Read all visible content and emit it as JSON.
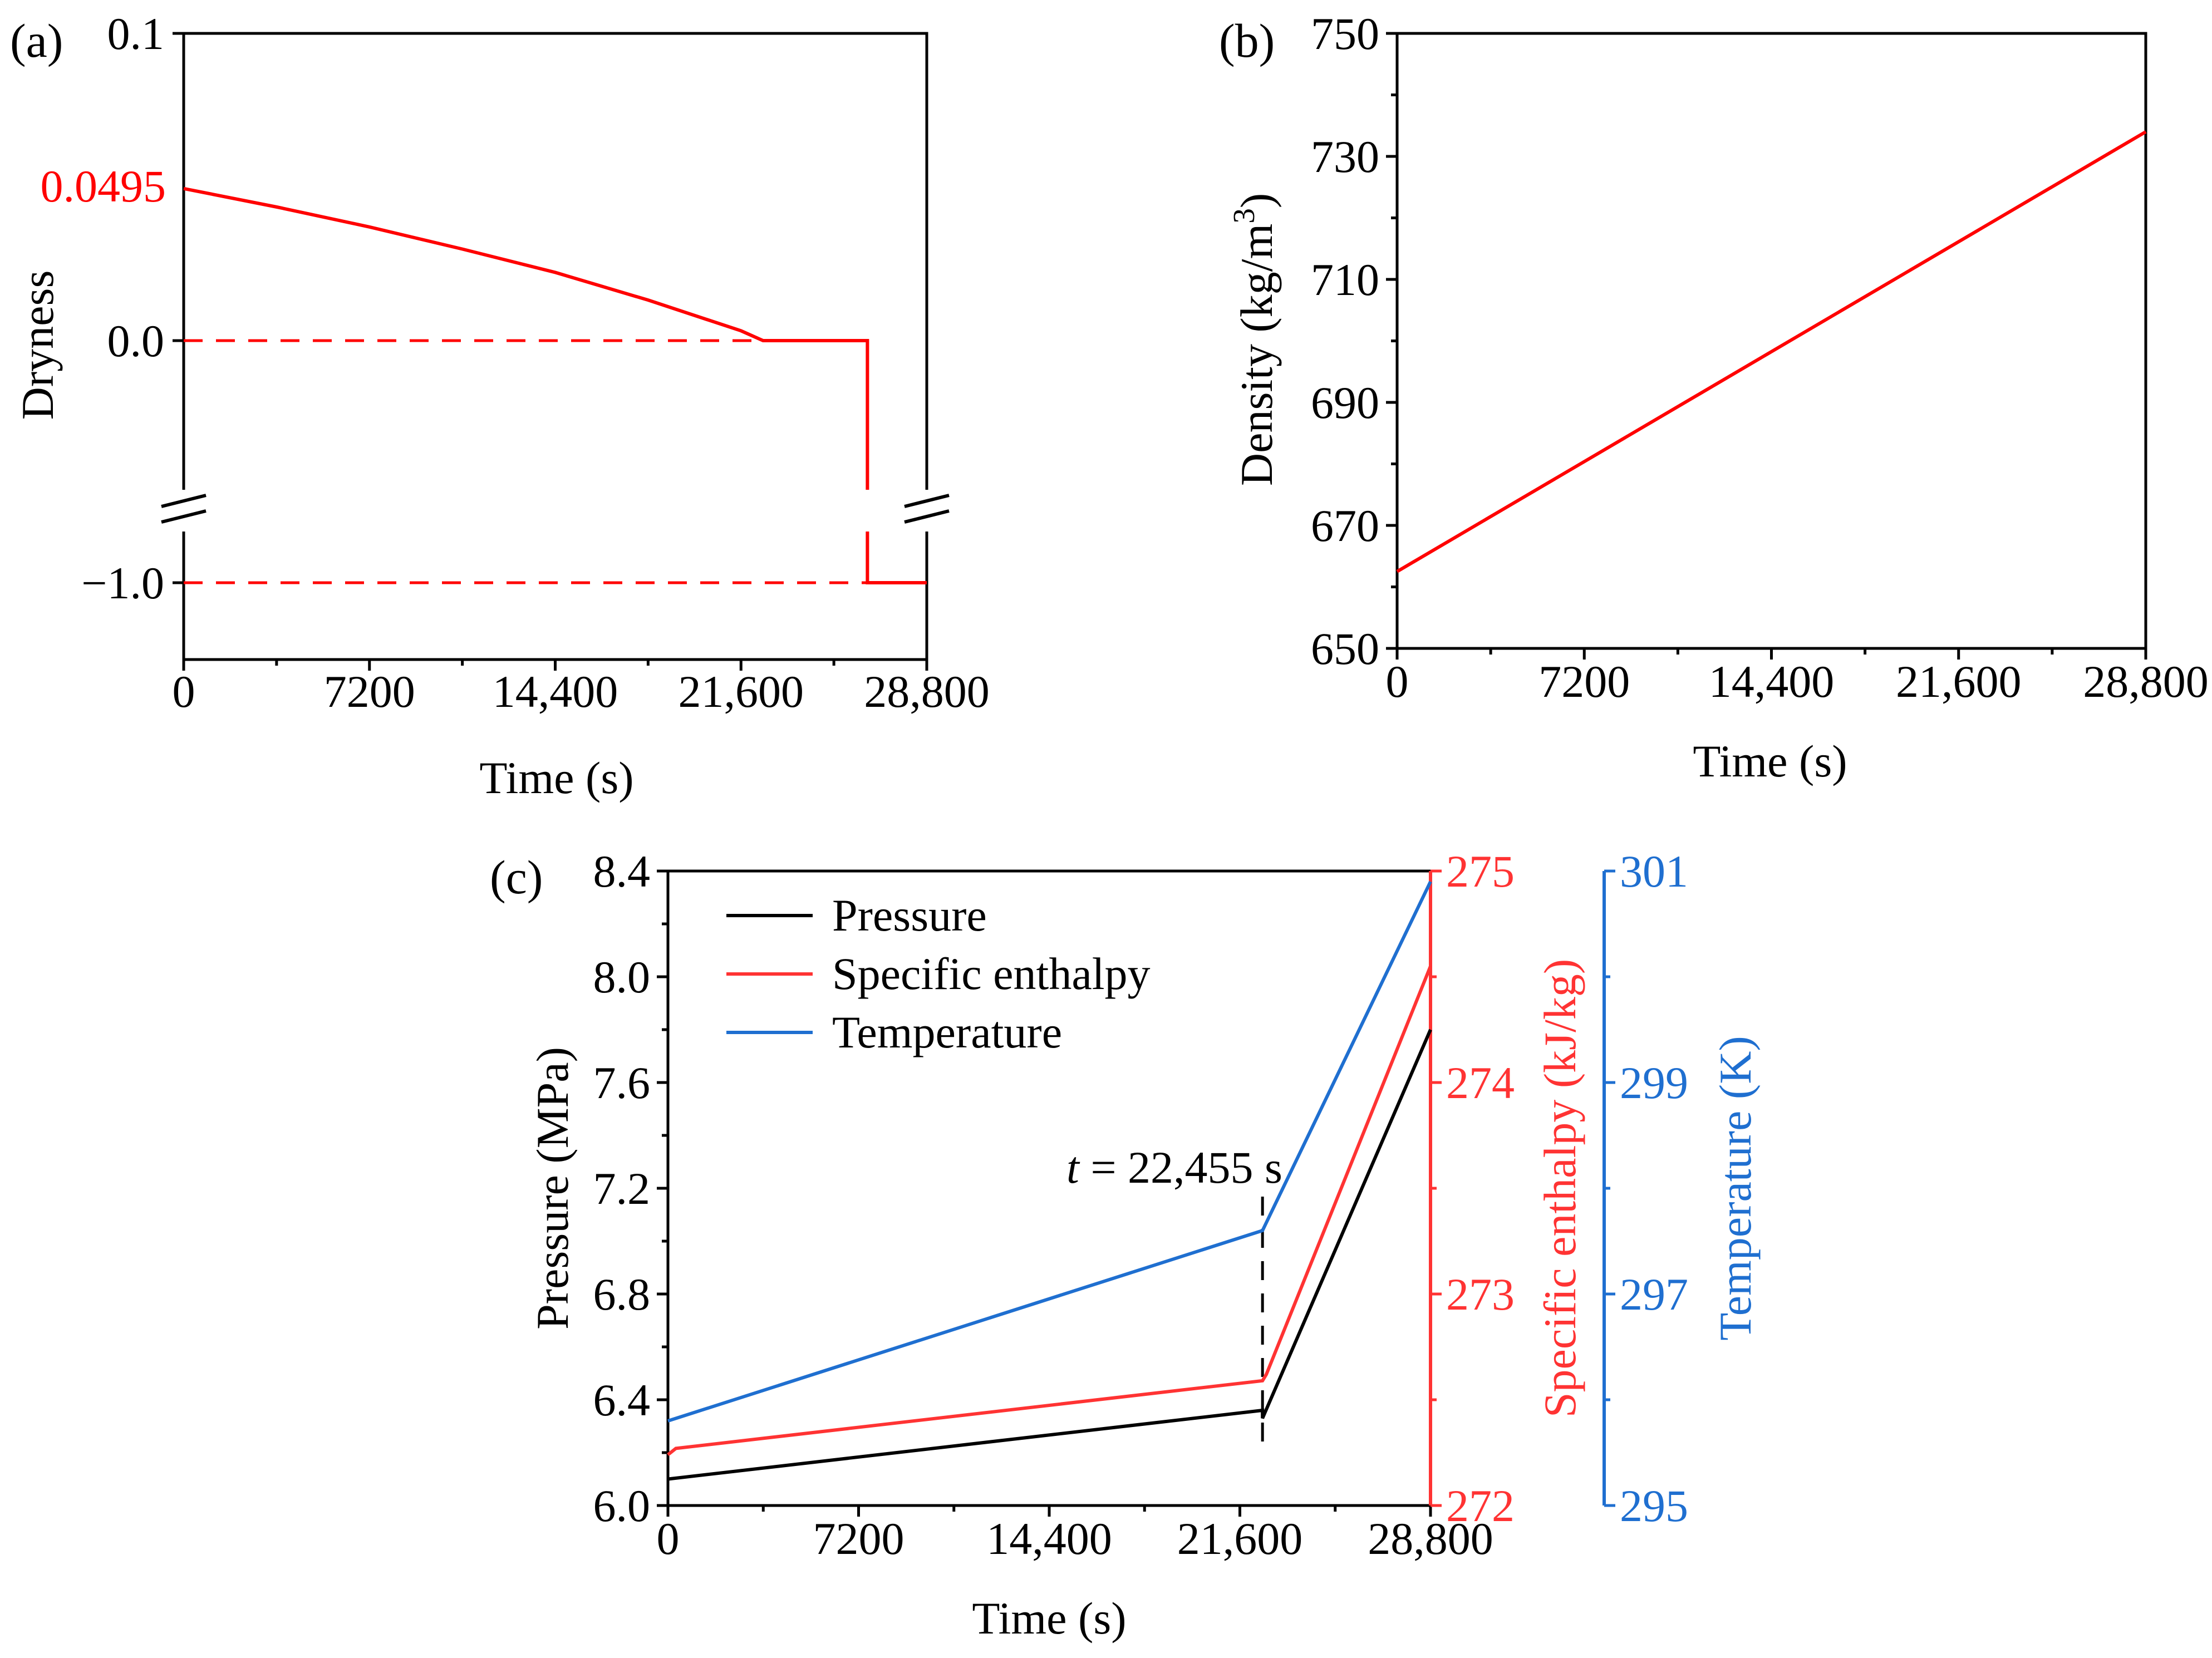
{
  "chart_data": [
    {
      "panel": "(a)",
      "type": "line",
      "xlabel": "Time (s)",
      "ylabel": "Dryness",
      "xlim": [
        0,
        28800
      ],
      "x_ticks": [
        "0",
        "7200",
        "14,400",
        "21,600",
        "28,800"
      ],
      "y_ticks": [
        "0.1",
        "0.0",
        "−1.0"
      ],
      "highlight_label": "0.0495",
      "y_axis_break": true,
      "series": [
        {
          "name": "Dryness",
          "color": "#ff0000",
          "x": [
            0,
            3600,
            7200,
            10800,
            14400,
            18000,
            21600,
            22455,
            26500,
            26500,
            28800
          ],
          "values": [
            0.0495,
            0.0435,
            0.037,
            0.0298,
            0.0222,
            0.0132,
            0.0032,
            0.0,
            0.0,
            -1.0,
            -1.0
          ]
        }
      ],
      "reference_lines": [
        {
          "y": 0.0,
          "style": "dashed",
          "x_range": [
            0,
            22455
          ]
        },
        {
          "y": -1.0,
          "style": "dashed",
          "x_range": [
            0,
            26500
          ]
        }
      ]
    },
    {
      "panel": "(b)",
      "type": "line",
      "xlabel": "Time (s)",
      "ylabel": "Density (kg/m",
      "ylabel_sup": "3",
      "ylabel_close": ")",
      "xlim": [
        0,
        28800
      ],
      "ylim": [
        650,
        750
      ],
      "x_ticks": [
        "0",
        "7200",
        "14,400",
        "21,600",
        "28,800"
      ],
      "y_ticks": [
        "650",
        "670",
        "690",
        "710",
        "730",
        "750"
      ],
      "series": [
        {
          "name": "Density",
          "color": "#ff0000",
          "x": [
            0,
            28800
          ],
          "values": [
            662.5,
            734
          ]
        }
      ]
    },
    {
      "panel": "(c)",
      "type": "line",
      "xlabel": "Time (s)",
      "ylabel": "Pressure (MPa)",
      "ylabel2": "Specific enthalpy (kJ/kg)",
      "ylabel3": "Temperature (K)",
      "xlim": [
        0,
        28800
      ],
      "ylim": [
        6.0,
        8.4
      ],
      "ylim2": [
        272,
        275
      ],
      "ylim3": [
        295,
        301
      ],
      "x_ticks": [
        "0",
        "7200",
        "14,400",
        "21,600",
        "28,800"
      ],
      "y_ticks": [
        "6.0",
        "6.4",
        "6.8",
        "7.2",
        "7.6",
        "8.0",
        "8.4"
      ],
      "y2_ticks": [
        "272",
        "273",
        "274",
        "275"
      ],
      "y3_ticks": [
        "295",
        "297",
        "299",
        "301"
      ],
      "annotation": {
        "text_italic": "t",
        "text_rest": " = 22,455 s",
        "x": 22455
      },
      "series": [
        {
          "name": "Pressure",
          "axis": "left",
          "color": "#000000",
          "x": [
            0,
            22455,
            22455,
            28800
          ],
          "values": [
            6.1,
            6.36,
            6.33,
            7.8
          ]
        },
        {
          "name": "Specific enthalpy",
          "axis": "right1",
          "color": "#ff3333",
          "x": [
            0,
            300,
            22455,
            22600,
            28800
          ],
          "values": [
            272.24,
            272.27,
            272.59,
            272.62,
            274.55
          ]
        },
        {
          "name": "Temperature",
          "axis": "right2",
          "color": "#1f6fd0",
          "x": [
            0,
            22455,
            28800
          ],
          "values": [
            295.8,
            297.6,
            300.9
          ]
        }
      ],
      "legend": [
        "Pressure",
        "Specific enthalpy",
        "Temperature"
      ]
    }
  ]
}
